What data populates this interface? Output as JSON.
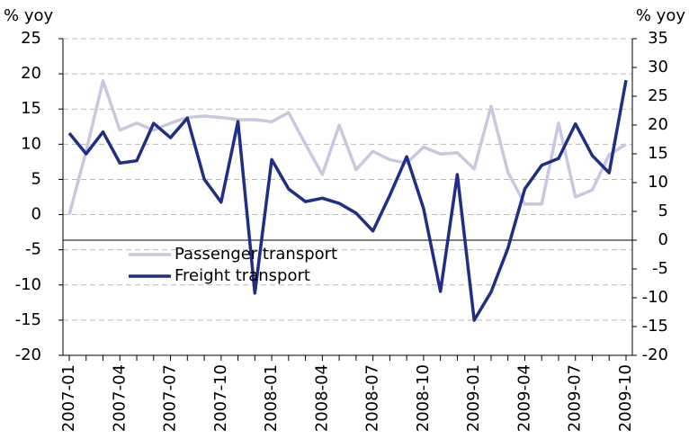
{
  "chart_data": {
    "type": "line",
    "y_label": "% yoy",
    "y2_label": "% yoy",
    "categories": [
      "2007-01",
      null,
      null,
      "2007-04",
      null,
      null,
      "2007-07",
      null,
      null,
      "2007-10",
      null,
      null,
      "2008-01",
      null,
      null,
      "2008-04",
      null,
      null,
      "2008-07",
      null,
      null,
      "2008-10",
      null,
      null,
      "2009-01",
      null,
      null,
      "2009-04",
      null,
      null,
      "2009-07",
      null,
      null,
      "2009-10"
    ],
    "series": [
      {
        "name": "Passenger transport",
        "color": "#c8c8e0",
        "values": [
          0,
          9,
          19,
          12,
          13,
          12,
          13,
          13.8,
          14,
          13.8,
          13.5,
          13.5,
          13.2,
          14.5,
          10,
          5.7,
          12.7,
          6.4,
          9,
          7.8,
          7.3,
          9.6,
          8.6,
          8.8,
          6.5,
          15.4,
          6,
          1.5,
          1.5,
          13,
          2.5,
          3.5,
          8.5,
          10
        ]
      },
      {
        "name": "Freight transport",
        "color": "#1f2f86",
        "axis": "y2",
        "values": [
          18.6,
          15,
          18.8,
          13.4,
          13.8,
          20.3,
          17.8,
          21.2,
          10.6,
          6.6,
          20.6,
          -9.2,
          14,
          8.9,
          6.7,
          7.3,
          6.4,
          4.7,
          1.6,
          7.8,
          14.5,
          5.5,
          -8.9,
          11.4,
          -13.9,
          -9,
          -1.4,
          8.9,
          13,
          14.2,
          20.2,
          14.7,
          11.7,
          27.8
        ]
      }
    ],
    "ylim": [
      -20,
      25
    ],
    "yticks": [
      -20,
      -15,
      -10,
      -5,
      0,
      5,
      10,
      15,
      20,
      25
    ],
    "y2lim": [
      -20,
      35
    ],
    "y2ticks": [
      -20,
      -15,
      -10,
      -5,
      0,
      5,
      10,
      15,
      20,
      25,
      30,
      35
    ],
    "grid": true,
    "legend": "left"
  }
}
